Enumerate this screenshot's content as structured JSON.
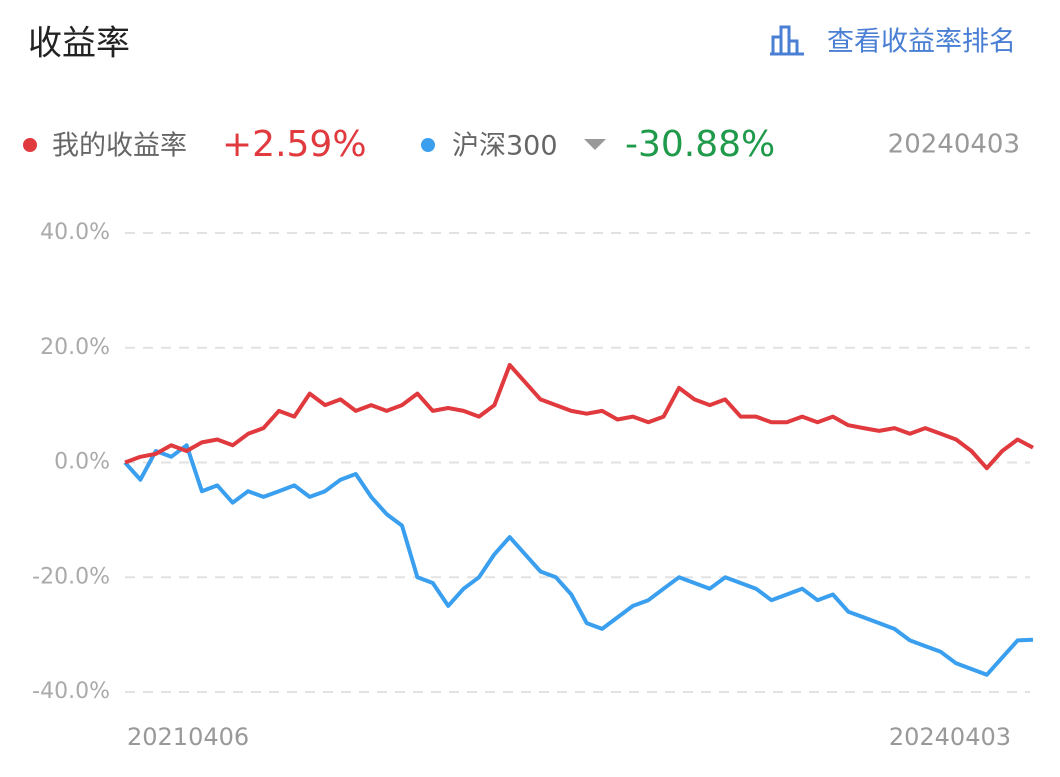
{
  "chart_data": {
    "type": "line",
    "title": "收益率",
    "link_text": "查看收益率排名",
    "selected_date": "20240403",
    "categories": [
      "20210406",
      null,
      null,
      null,
      null,
      null,
      null,
      null,
      null,
      null,
      null,
      null,
      null,
      null,
      null,
      null,
      null,
      null,
      null,
      null,
      null,
      null,
      null,
      null,
      null,
      null,
      null,
      null,
      null,
      null,
      null,
      null,
      null,
      null,
      null,
      null,
      null,
      null,
      null,
      null,
      null,
      null,
      null,
      null,
      null,
      null,
      null,
      null,
      null,
      null,
      null,
      null,
      null,
      null,
      null,
      null,
      null,
      null,
      null,
      "20240403"
    ],
    "series": [
      {
        "name": "我的收益率",
        "color": "#e0393e",
        "legend_value": "+2.59%",
        "legend_value_color": "#e0393e",
        "values": [
          0,
          1,
          1.5,
          3,
          2,
          3.5,
          4,
          3,
          5,
          6,
          9,
          8,
          12,
          10,
          11,
          9,
          10,
          9,
          10,
          12,
          9,
          9.5,
          9,
          8,
          10,
          17,
          14,
          11,
          10,
          9,
          8.5,
          9,
          7.5,
          8,
          7,
          8,
          13,
          11,
          10,
          11,
          8,
          8,
          7,
          7,
          8,
          7,
          8,
          6.5,
          6,
          5.5,
          6,
          5,
          6,
          5,
          4,
          2,
          -1,
          2,
          4,
          2.59
        ]
      },
      {
        "name": "沪深300",
        "color": "#3a9fef",
        "legend_value": "-30.88%",
        "legend_value_color": "#1f9a4a",
        "values": [
          0,
          -3,
          2,
          1,
          3,
          -5,
          -4,
          -7,
          -5,
          -6,
          -5,
          -4,
          -6,
          -5,
          -3,
          -2,
          -6,
          -9,
          -11,
          -20,
          -21,
          -25,
          -22,
          -20,
          -16,
          -13,
          -16,
          -19,
          -20,
          -23,
          -28,
          -29,
          -27,
          -25,
          -24,
          -22,
          -20,
          -21,
          -22,
          -20,
          -21,
          -22,
          -24,
          -23,
          -22,
          -24,
          -23,
          -26,
          -27,
          -28,
          -29,
          -31,
          -32,
          -33,
          -35,
          -36,
          -37,
          -34,
          -31,
          -30.88
        ]
      }
    ],
    "ylim": [
      -40,
      40
    ],
    "yticks": [
      {
        "value": 40,
        "label": "40.0%"
      },
      {
        "value": 20,
        "label": "20.0%"
      },
      {
        "value": 0,
        "label": "0.0%"
      },
      {
        "value": -20,
        "label": "-20.0%"
      },
      {
        "value": -40,
        "label": "-40.0%"
      }
    ],
    "grid": true
  }
}
